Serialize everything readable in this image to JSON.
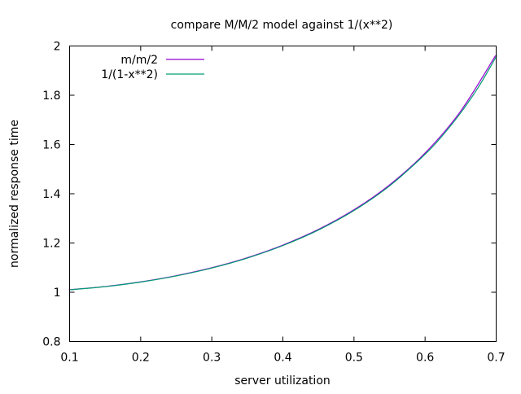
{
  "chart_data": {
    "type": "line",
    "title": "compare M/M/2 model against 1/(x**2)",
    "xlabel": "server utilization",
    "ylabel": "normalized response time",
    "xlim": [
      0.1,
      0.7
    ],
    "ylim": [
      0.8,
      2.0
    ],
    "xticks": [
      "0.1",
      "0.2",
      "0.3",
      "0.4",
      "0.5",
      "0.6",
      "0.7"
    ],
    "yticks": [
      "0.8",
      "1",
      "1.2",
      "1.4",
      "1.6",
      "1.8",
      "2"
    ],
    "grid": false,
    "legend_position": "top-left",
    "series": [
      {
        "name": "m/m/2",
        "color": "#9400d3",
        "x": [
          0.1,
          0.15,
          0.2,
          0.25,
          0.3,
          0.35,
          0.4,
          0.45,
          0.5,
          0.55,
          0.6,
          0.65,
          0.7
        ],
        "y": [
          1.0101,
          1.023,
          1.0417,
          1.0667,
          1.0989,
          1.1396,
          1.1905,
          1.2539,
          1.3333,
          1.4337,
          1.5625,
          1.7316,
          1.9608
        ]
      },
      {
        "name": "1/(1-x**2)",
        "color": "#009e73",
        "x": [
          0.1,
          0.15,
          0.2,
          0.25,
          0.3,
          0.35,
          0.4,
          0.45,
          0.5,
          0.55,
          0.6,
          0.625,
          0.65,
          0.675,
          0.7
        ],
        "y": [
          1.0101,
          1.023,
          1.0417,
          1.0667,
          1.0989,
          1.1396,
          1.1905,
          1.2539,
          1.3333,
          1.4337,
          1.5625,
          1.641,
          1.7316,
          1.8371,
          1.9608
        ]
      }
    ]
  }
}
